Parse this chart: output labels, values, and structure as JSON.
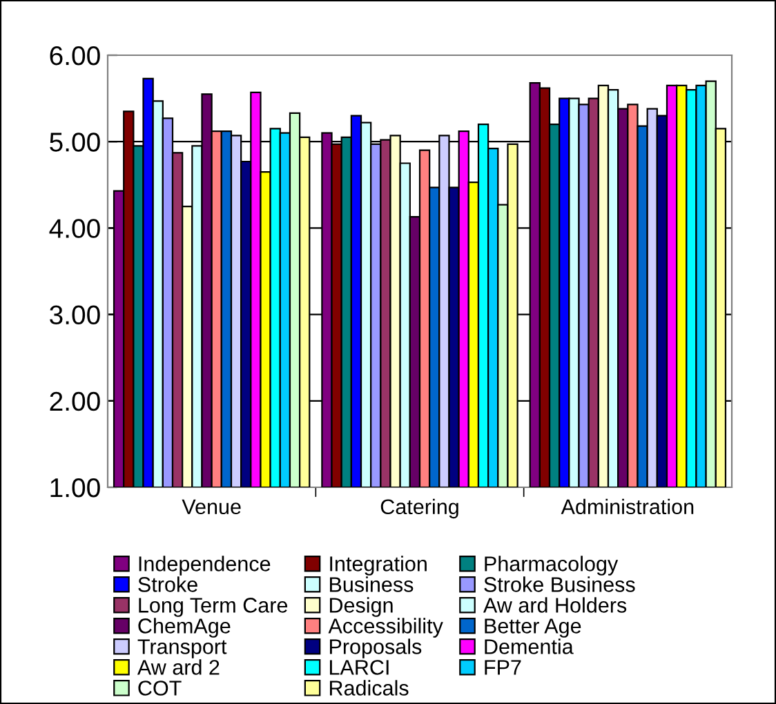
{
  "chart_data": {
    "type": "bar",
    "categories": [
      "Venue",
      "Catering",
      "Administration"
    ],
    "ylim": [
      1,
      6
    ],
    "yticks": [
      {
        "value": 1,
        "label": "1.00"
      },
      {
        "value": 2,
        "label": "2.00"
      },
      {
        "value": 3,
        "label": "3.00"
      },
      {
        "value": 4,
        "label": "4.00"
      },
      {
        "value": 5,
        "label": "5.00"
      },
      {
        "value": 6,
        "label": "6.00"
      }
    ],
    "grid": "y",
    "legend": "bottom",
    "series": [
      {
        "name": "Independence",
        "color": "#800080",
        "values": [
          4.43,
          5.1,
          5.68
        ]
      },
      {
        "name": "Integration",
        "color": "#800000",
        "values": [
          5.35,
          4.97,
          5.62
        ]
      },
      {
        "name": "Pharmacology",
        "color": "#008080",
        "values": [
          4.95,
          5.05,
          5.2
        ]
      },
      {
        "name": "Stroke",
        "color": "#0000ff",
        "values": [
          5.73,
          5.3,
          5.5
        ]
      },
      {
        "name": "Business",
        "color": "#ccffff",
        "values": [
          5.47,
          5.22,
          5.5
        ]
      },
      {
        "name": "Stroke Business",
        "color": "#9999ff",
        "values": [
          5.27,
          4.97,
          5.43
        ]
      },
      {
        "name": "Long Term Care",
        "color": "#993366",
        "values": [
          4.87,
          5.02,
          5.5
        ]
      },
      {
        "name": "Design",
        "color": "#ffffcc",
        "values": [
          4.25,
          5.07,
          5.65
        ]
      },
      {
        "name": "Aw ard Holders",
        "color": "#ccffff",
        "values": [
          4.95,
          4.75,
          5.6
        ]
      },
      {
        "name": "ChemAge",
        "color": "#660066",
        "values": [
          5.55,
          4.13,
          5.38
        ]
      },
      {
        "name": "Accessibility",
        "color": "#ff8080",
        "values": [
          5.12,
          4.9,
          5.43
        ]
      },
      {
        "name": "Better Age",
        "color": "#0066cc",
        "values": [
          5.12,
          4.47,
          5.18
        ]
      },
      {
        "name": "Transport",
        "color": "#ccccff",
        "values": [
          5.07,
          5.07,
          5.38
        ]
      },
      {
        "name": "Proposals",
        "color": "#000080",
        "values": [
          4.77,
          4.47,
          5.3
        ]
      },
      {
        "name": "Dementia",
        "color": "#ff00ff",
        "values": [
          5.57,
          5.12,
          5.65
        ]
      },
      {
        "name": "Aw ard 2",
        "color": "#ffff00",
        "values": [
          4.65,
          4.53,
          5.65
        ]
      },
      {
        "name": "LARCI",
        "color": "#00ffff",
        "values": [
          5.15,
          5.2,
          5.6
        ]
      },
      {
        "name": "FP7",
        "color": "#00ccff",
        "values": [
          5.1,
          4.92,
          5.65
        ]
      },
      {
        "name": "COT",
        "color": "#ccffcc",
        "values": [
          5.33,
          4.27,
          5.7
        ]
      },
      {
        "name": "Radicals",
        "color": "#ffff99",
        "values": [
          5.05,
          4.97,
          5.15
        ]
      }
    ]
  }
}
